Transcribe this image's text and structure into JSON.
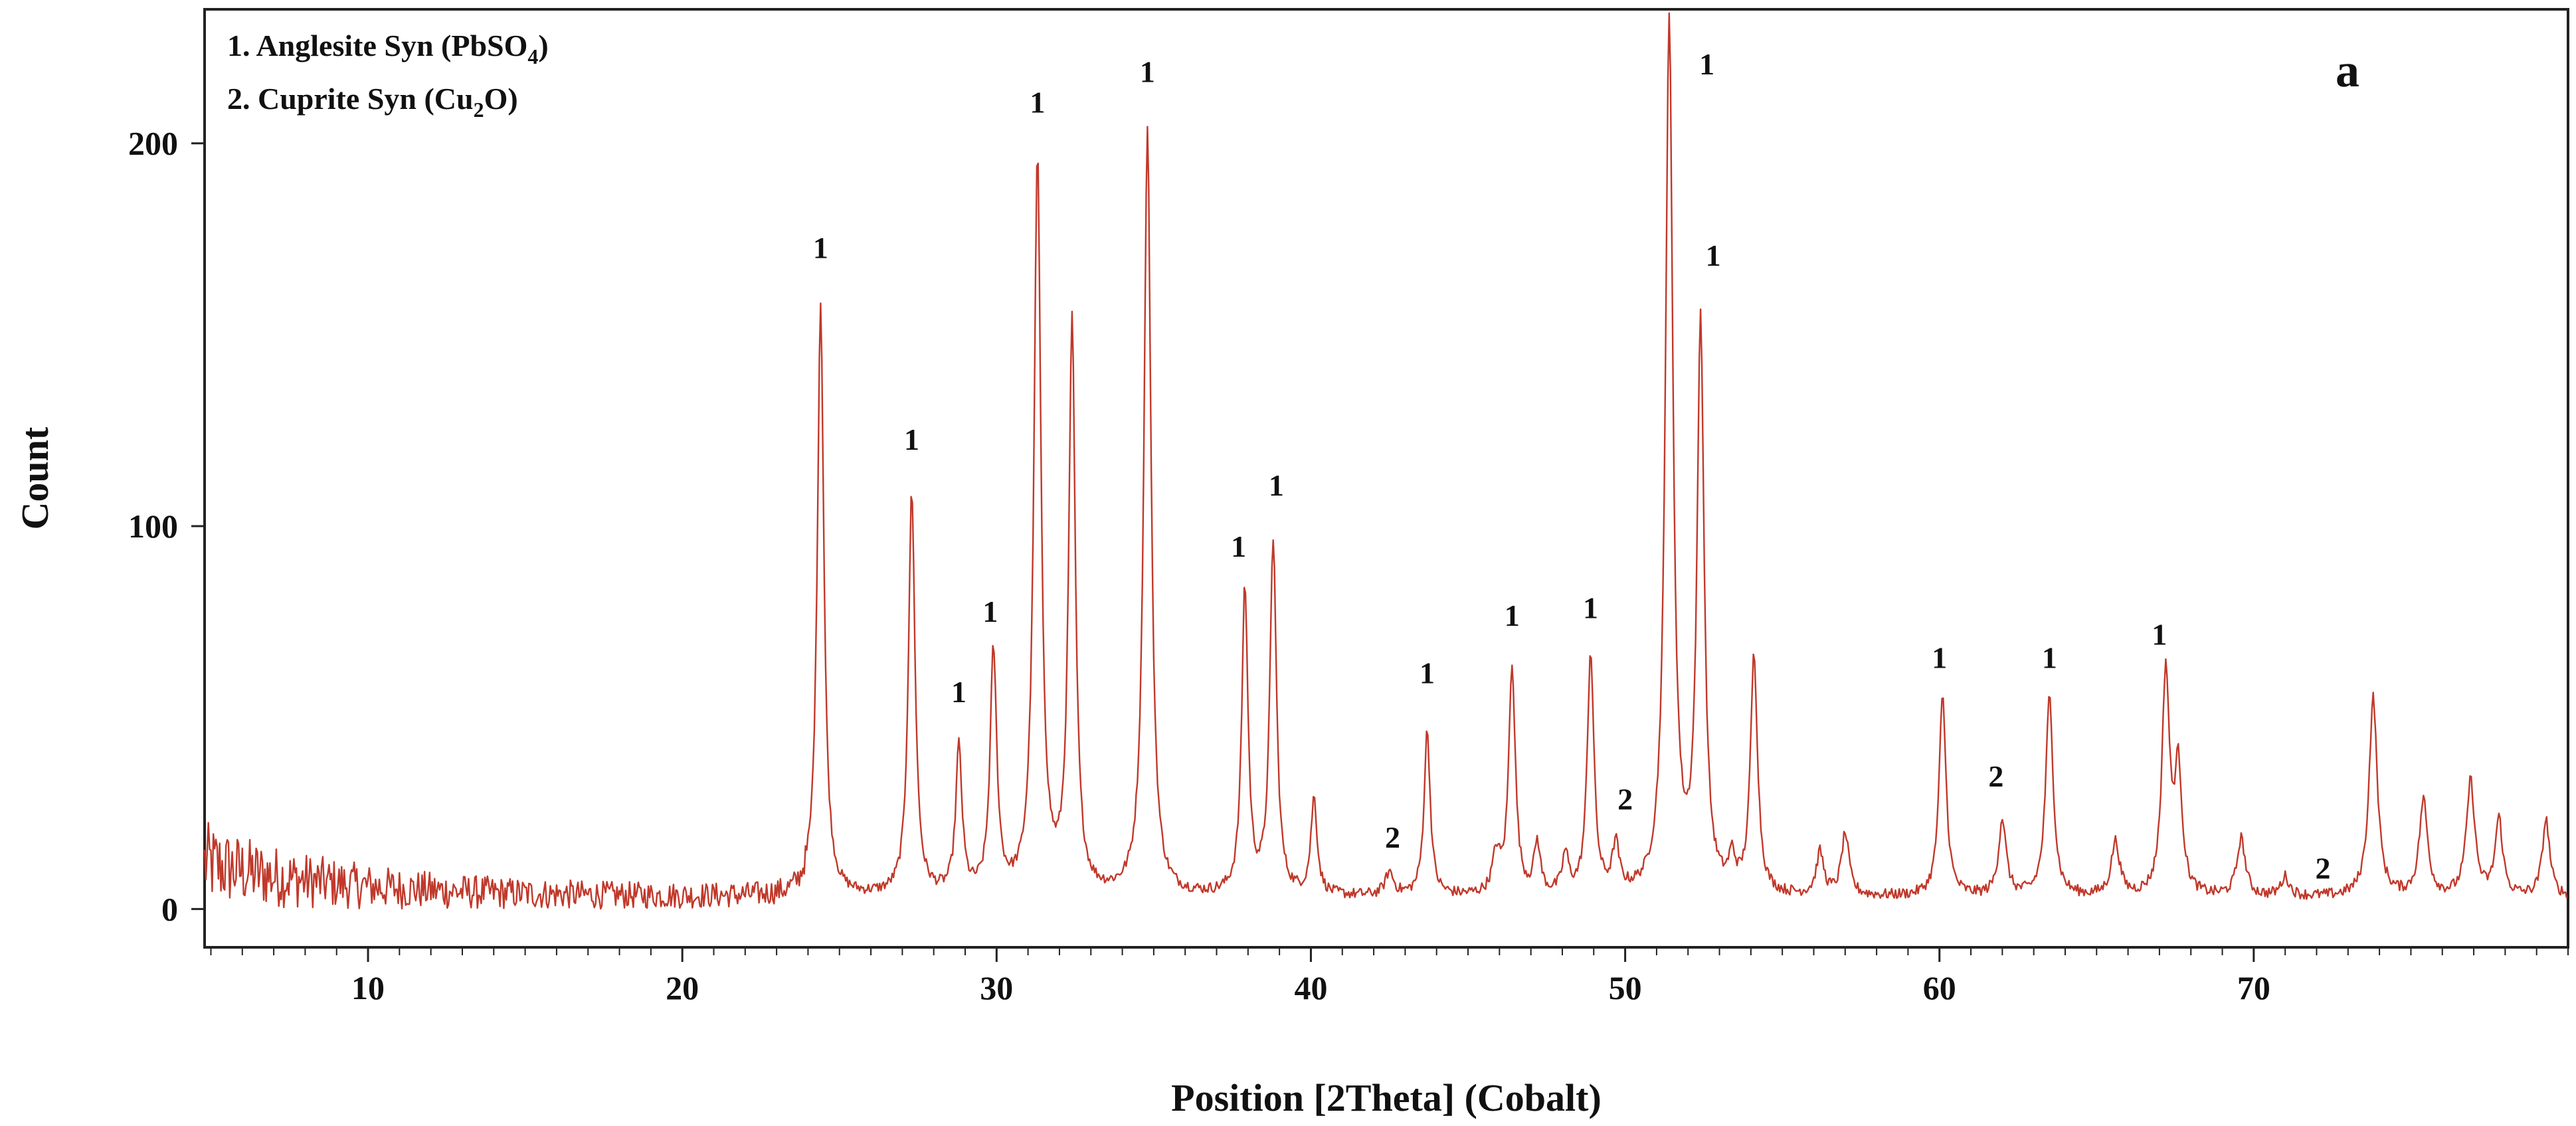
{
  "chart_data": {
    "type": "line",
    "panel_label": "a",
    "xlabel": "Position [2Theta] (Cobalt)",
    "ylabel": "Count",
    "xlim": [
      4.8,
      80
    ],
    "ylim": [
      -10,
      235
    ],
    "x_ticks": [
      10,
      20,
      30,
      40,
      50,
      60,
      70
    ],
    "y_ticks": [
      0,
      100,
      200
    ],
    "grid": false,
    "line_color": "#c0392b",
    "legend": [
      {
        "number": "1.",
        "name": "Anglesite Syn (PbSO",
        "subscript": "4",
        "suffix": ")"
      },
      {
        "number": "2.",
        "name": "Cuprite Syn (Cu",
        "subscript": "2",
        "suffix": "O)"
      }
    ],
    "peaks": [
      {
        "x": 24.4,
        "y": 155,
        "w": 0.16
      },
      {
        "x": 27.3,
        "y": 105,
        "w": 0.16
      },
      {
        "x": 28.8,
        "y": 38,
        "w": 0.15
      },
      {
        "x": 29.9,
        "y": 63,
        "w": 0.16
      },
      {
        "x": 31.3,
        "y": 192,
        "w": 0.17
      },
      {
        "x": 32.4,
        "y": 148,
        "w": 0.16
      },
      {
        "x": 34.8,
        "y": 200,
        "w": 0.17
      },
      {
        "x": 37.9,
        "y": 80,
        "w": 0.15
      },
      {
        "x": 38.8,
        "y": 92,
        "w": 0.16
      },
      {
        "x": 40.1,
        "y": 25,
        "w": 0.15
      },
      {
        "x": 42.5,
        "y": 6,
        "w": 0.2
      },
      {
        "x": 43.7,
        "y": 43,
        "w": 0.15
      },
      {
        "x": 45.9,
        "y": 10,
        "w": 0.18
      },
      {
        "x": 46.4,
        "y": 60,
        "w": 0.16
      },
      {
        "x": 47.2,
        "y": 13,
        "w": 0.15
      },
      {
        "x": 48.1,
        "y": 10,
        "w": 0.15
      },
      {
        "x": 48.9,
        "y": 63,
        "w": 0.16
      },
      {
        "x": 49.7,
        "y": 12,
        "w": 0.16
      },
      {
        "x": 51.4,
        "y": 228,
        "w": 0.18
      },
      {
        "x": 52.4,
        "y": 148,
        "w": 0.17
      },
      {
        "x": 53.4,
        "y": 8,
        "w": 0.15
      },
      {
        "x": 54.1,
        "y": 62,
        "w": 0.17
      },
      {
        "x": 56.2,
        "y": 11,
        "w": 0.18
      },
      {
        "x": 57.0,
        "y": 16,
        "w": 0.18
      },
      {
        "x": 60.1,
        "y": 52,
        "w": 0.17
      },
      {
        "x": 62.0,
        "y": 20,
        "w": 0.18
      },
      {
        "x": 63.5,
        "y": 52,
        "w": 0.18
      },
      {
        "x": 65.6,
        "y": 14,
        "w": 0.2
      },
      {
        "x": 67.2,
        "y": 58,
        "w": 0.18
      },
      {
        "x": 67.6,
        "y": 32,
        "w": 0.18
      },
      {
        "x": 69.6,
        "y": 15,
        "w": 0.2
      },
      {
        "x": 71.0,
        "y": 5,
        "w": 0.2
      },
      {
        "x": 73.8,
        "y": 52,
        "w": 0.2
      },
      {
        "x": 75.4,
        "y": 25,
        "w": 0.2
      },
      {
        "x": 76.9,
        "y": 30,
        "w": 0.2
      },
      {
        "x": 77.8,
        "y": 20,
        "w": 0.18
      },
      {
        "x": 79.3,
        "y": 20,
        "w": 0.18
      }
    ],
    "annotations": [
      {
        "text": "1",
        "x": 24.4,
        "y": 170
      },
      {
        "text": "1",
        "x": 27.3,
        "y": 120
      },
      {
        "text": "1",
        "x": 28.8,
        "y": 54
      },
      {
        "text": "1",
        "x": 29.8,
        "y": 75
      },
      {
        "text": "1",
        "x": 31.3,
        "y": 208
      },
      {
        "text": "1",
        "x": 34.8,
        "y": 216
      },
      {
        "text": "1",
        "x": 37.7,
        "y": 92
      },
      {
        "text": "1",
        "x": 38.9,
        "y": 108
      },
      {
        "text": "2",
        "x": 42.6,
        "y": 16
      },
      {
        "text": "1",
        "x": 43.7,
        "y": 59
      },
      {
        "text": "1",
        "x": 46.4,
        "y": 74
      },
      {
        "text": "1",
        "x": 48.9,
        "y": 76
      },
      {
        "text": "2",
        "x": 50.0,
        "y": 26
      },
      {
        "text": "1",
        "x": 52.6,
        "y": 218
      },
      {
        "text": "1",
        "x": 52.8,
        "y": 168
      },
      {
        "text": "1",
        "x": 60.0,
        "y": 63
      },
      {
        "text": "2",
        "x": 61.8,
        "y": 32
      },
      {
        "text": "1",
        "x": 63.5,
        "y": 63
      },
      {
        "text": "1",
        "x": 67.0,
        "y": 69
      },
      {
        "text": "2",
        "x": 72.2,
        "y": 8
      }
    ]
  }
}
